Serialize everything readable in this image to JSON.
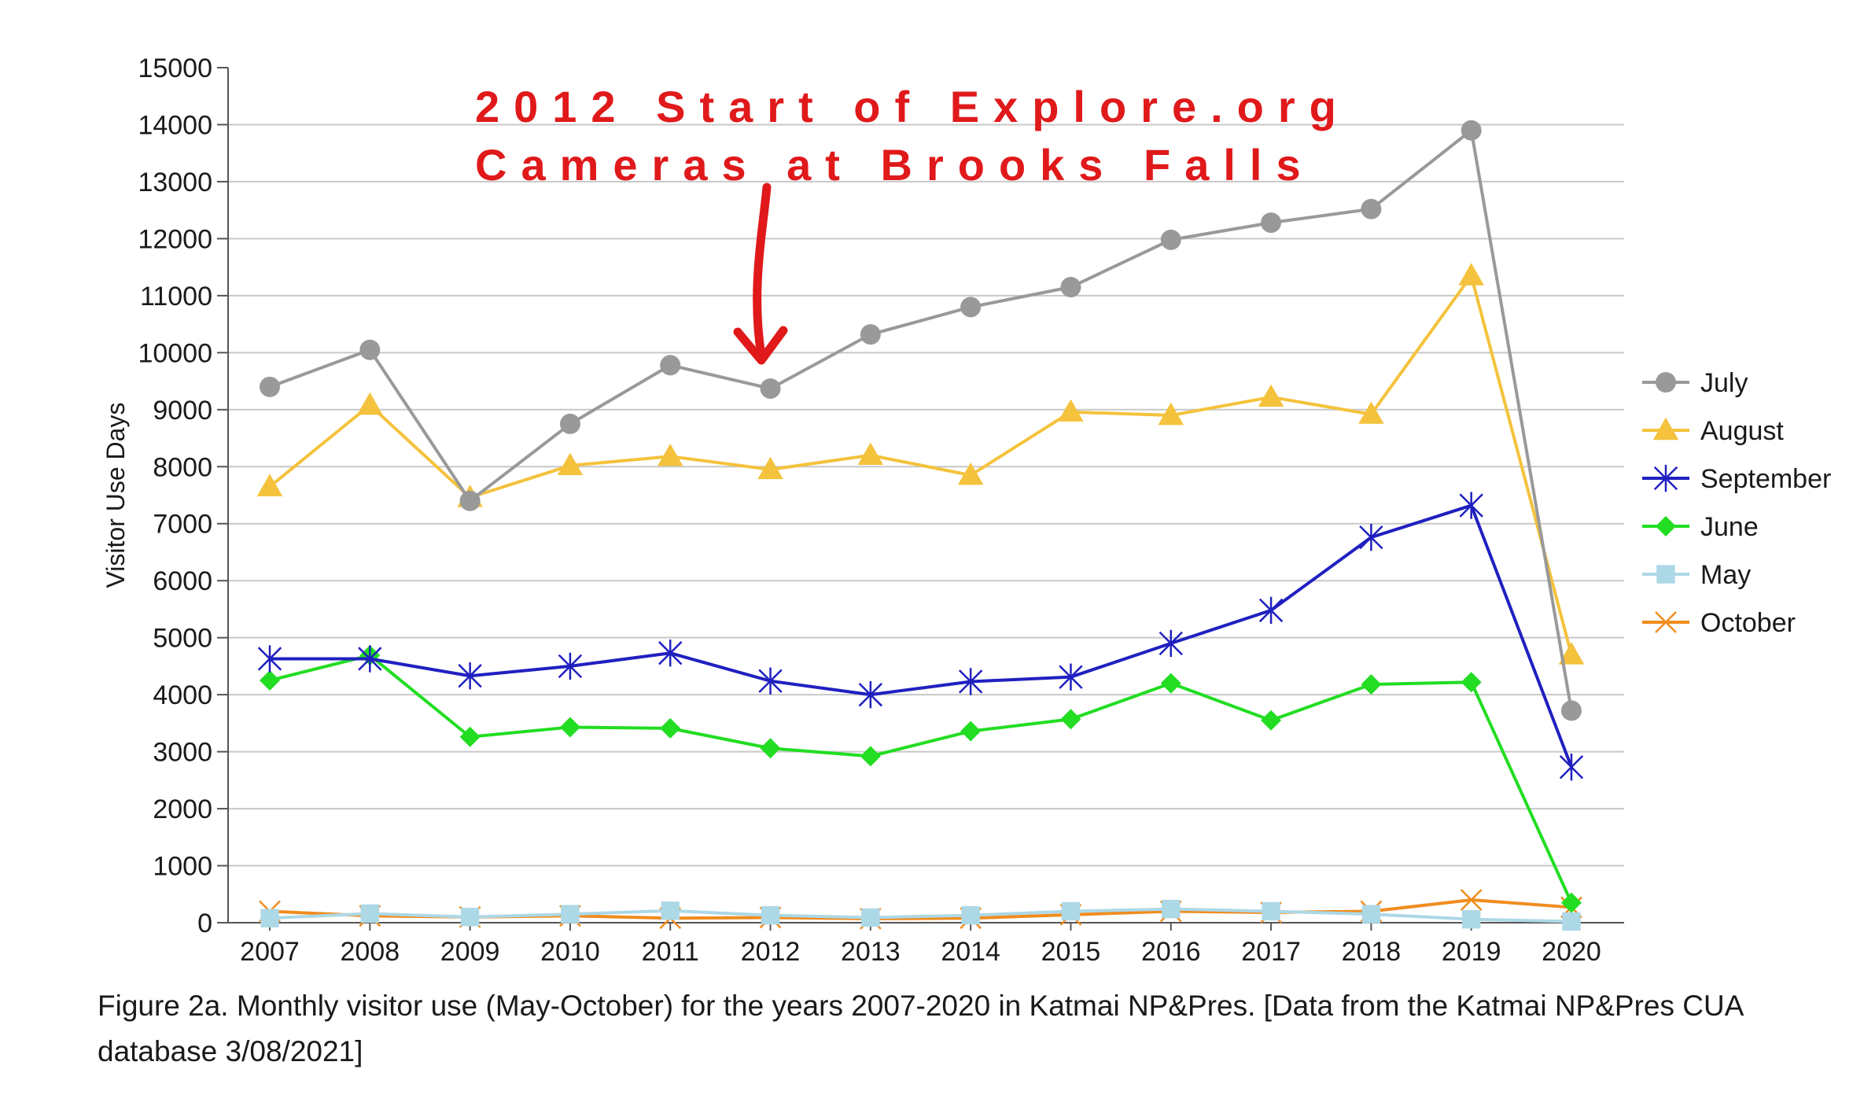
{
  "caption": "Figure 2a. Monthly visitor use (May-October) for the years 2007-2020 in Katmai NP&Pres. [Data from the Katmai NP&Pres CUA database 3/08/2021]",
  "chart_data": {
    "type": "line",
    "title": "",
    "xlabel": "",
    "ylabel": "Visitor Use Days",
    "x": [
      "2007",
      "2008",
      "2009",
      "2010",
      "2011",
      "2012",
      "2013",
      "2014",
      "2015",
      "2016",
      "2017",
      "2018",
      "2019",
      "2020"
    ],
    "ylim": [
      0,
      15000
    ],
    "yticks": [
      0,
      1000,
      2000,
      3000,
      4000,
      5000,
      6000,
      7000,
      8000,
      9000,
      10000,
      11000,
      12000,
      13000,
      14000,
      15000
    ],
    "grid": true,
    "legend_position": "right",
    "series": [
      {
        "name": "July",
        "color": "#999999",
        "marker": "circle",
        "values": [
          9400,
          10050,
          7400,
          8750,
          9780,
          9370,
          10320,
          10800,
          11150,
          11980,
          12280,
          12520,
          13900,
          3720
        ]
      },
      {
        "name": "August",
        "color": "#f4c23c",
        "marker": "triangle",
        "values": [
          7650,
          9080,
          7460,
          8020,
          8180,
          7950,
          8200,
          7850,
          8960,
          8900,
          9220,
          8920,
          11350,
          4700
        ]
      },
      {
        "name": "September",
        "color": "#2020c0",
        "marker": "asterisk",
        "values": [
          4630,
          4630,
          4330,
          4500,
          4730,
          4240,
          4000,
          4230,
          4310,
          4900,
          5480,
          6760,
          7320,
          2730
        ]
      },
      {
        "name": "June",
        "color": "#22dd22",
        "marker": "diamond",
        "values": [
          4250,
          4690,
          3260,
          3430,
          3410,
          3060,
          2920,
          3360,
          3570,
          4200,
          3550,
          4180,
          4220,
          350
        ]
      },
      {
        "name": "May",
        "color": "#add8e6",
        "marker": "square",
        "values": [
          80,
          160,
          100,
          150,
          210,
          130,
          90,
          130,
          200,
          240,
          200,
          150,
          60,
          20
        ]
      },
      {
        "name": "October",
        "color": "#f08c1e",
        "marker": "x",
        "values": [
          200,
          120,
          100,
          120,
          80,
          90,
          70,
          80,
          140,
          200,
          180,
          200,
          400,
          270
        ]
      }
    ],
    "annotation": {
      "lines": [
        "2012 Start of Explore.org",
        "Cameras at Brooks Falls"
      ],
      "color": "#e0191b",
      "points_to_x": "2012"
    }
  }
}
